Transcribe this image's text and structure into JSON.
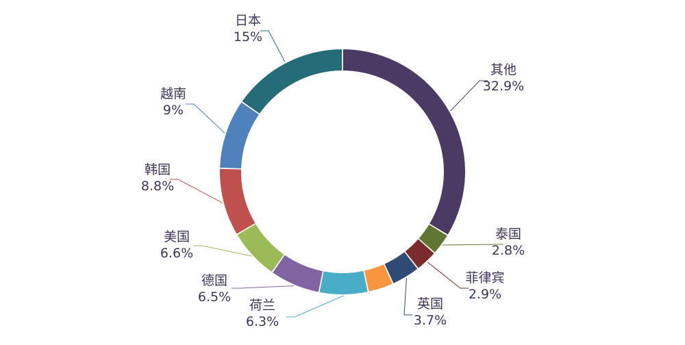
{
  "chart_data": {
    "type": "pie",
    "style": "donut",
    "start": "top",
    "direction": "clockwise",
    "categories": [
      "其他",
      "泰国",
      "菲律宾",
      "英国",
      "",
      "荷兰",
      "德国",
      "美国",
      "韩国",
      "越南",
      "日本"
    ],
    "values": [
      32.9,
      2.8,
      2.9,
      3.7,
      3.3,
      6.3,
      6.5,
      6.6,
      8.8,
      9.0,
      15.0
    ],
    "value_labels": [
      "32.9%",
      "2.8%",
      "2.9%",
      "3.7%",
      "",
      "6.3%",
      "6.5%",
      "6.6%",
      "8.8%",
      "9%",
      "15%"
    ],
    "colors": [
      "#4b3a63",
      "#5f7732",
      "#7a2c2d",
      "#2e4a75",
      "#f7963f",
      "#4aadc7",
      "#8064a2",
      "#9bbb59",
      "#c0504d",
      "#4f81bd",
      "#266c78"
    ]
  }
}
